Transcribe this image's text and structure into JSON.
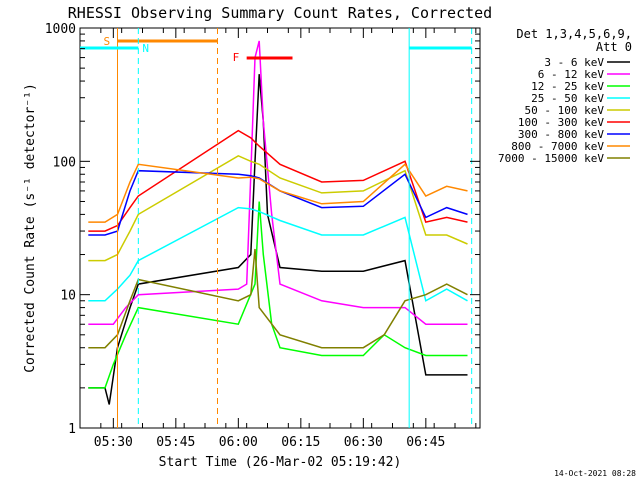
{
  "chart_data": {
    "type": "line",
    "title": "RHESSI Observing Summary Count Rates, Corrected",
    "ylabel": "Corrected Count Rate (s⁻¹ detector⁻¹)",
    "xlabel": "Start Time (26-Mar-02 05:19:42)",
    "yscale": "log",
    "ylim": [
      1,
      1000
    ],
    "xlim": [
      "05:22",
      "06:58"
    ],
    "x_ticks": [
      "05:30",
      "05:45",
      "06:00",
      "06:15",
      "06:30",
      "06:45"
    ],
    "y_ticks": [
      "1",
      "10",
      "100",
      "1000"
    ],
    "detector_info": "Det 1,3,4,5,6,9,",
    "attenuator_info": "Att 0",
    "timestamp": "14-Oct-2021 08:28",
    "flag_labels": [
      "S",
      "N",
      "F"
    ],
    "colors": {
      "3-6": "#000000",
      "6-12": "#ff00ff",
      "12-25": "#00ff00",
      "25-50": "#00ffff",
      "50-100": "#cccc00",
      "100-300": "#ff0000",
      "300-800": "#0000ff",
      "800-7000": "#ff8800",
      "7000-15000": "#808000"
    },
    "series": [
      {
        "name": "3 - 6 keV",
        "color": "#000000",
        "t": [
          "05:24",
          "05:28",
          "05:29",
          "05:31",
          "05:34",
          "05:36",
          "06:00",
          "06:03",
          "06:04",
          "06:05",
          "06:06",
          "06:07",
          "06:10",
          "06:20",
          "06:30",
          "06:40",
          "06:45",
          "06:55"
        ],
        "v": [
          2.0,
          2.0,
          1.5,
          4,
          8,
          12,
          16,
          20,
          100,
          450,
          200,
          40,
          16,
          15,
          15,
          18,
          2.5,
          2.5
        ]
      },
      {
        "name": "6 - 12 keV",
        "color": "#ff00ff",
        "t": [
          "05:24",
          "05:30",
          "05:33",
          "05:36",
          "06:00",
          "06:02",
          "06:03",
          "06:04",
          "06:05",
          "06:06",
          "06:08",
          "06:10",
          "06:20",
          "06:30",
          "06:40",
          "06:45",
          "06:55"
        ],
        "v": [
          6,
          6,
          8,
          10,
          11,
          12,
          80,
          600,
          800,
          200,
          40,
          12,
          9,
          8,
          8,
          6,
          6
        ]
      },
      {
        "name": "12 - 25 keV",
        "color": "#00ff00",
        "t": [
          "05:24",
          "05:28",
          "05:30",
          "05:33",
          "05:36",
          "06:00",
          "06:04",
          "06:05",
          "06:06",
          "06:08",
          "06:10",
          "06:20",
          "06:30",
          "06:35",
          "06:40",
          "06:45",
          "06:55"
        ],
        "v": [
          2.0,
          2.0,
          3,
          5,
          8,
          6,
          12,
          50,
          20,
          6,
          4,
          3.5,
          3.5,
          5,
          4,
          3.5,
          3.5
        ]
      },
      {
        "name": "25 - 50 keV",
        "color": "#00ffff",
        "t": [
          "05:24",
          "05:28",
          "05:31",
          "05:34",
          "05:36",
          "06:00",
          "06:03",
          "06:05",
          "06:10",
          "06:20",
          "06:30",
          "06:40",
          "06:45",
          "06:50",
          "06:55"
        ],
        "v": [
          9,
          9,
          11,
          14,
          18,
          45,
          44,
          42,
          36,
          28,
          28,
          38,
          9,
          11,
          9
        ]
      },
      {
        "name": "50 - 100 keV",
        "color": "#cccc00",
        "t": [
          "05:24",
          "05:28",
          "05:31",
          "05:34",
          "05:36",
          "06:00",
          "06:03",
          "06:05",
          "06:10",
          "06:20",
          "06:30",
          "06:40",
          "06:45",
          "06:50",
          "06:55"
        ],
        "v": [
          18,
          18,
          20,
          30,
          40,
          110,
          100,
          95,
          75,
          58,
          60,
          85,
          28,
          28,
          24
        ]
      },
      {
        "name": "100 - 300 keV",
        "color": "#ff0000",
        "t": [
          "05:24",
          "05:28",
          "05:31",
          "05:34",
          "05:36",
          "06:00",
          "06:03",
          "06:05",
          "06:10",
          "06:20",
          "06:30",
          "06:40",
          "06:45",
          "06:50",
          "06:55"
        ],
        "v": [
          30,
          30,
          33,
          45,
          55,
          170,
          150,
          130,
          95,
          70,
          72,
          100,
          35,
          38,
          35
        ]
      },
      {
        "name": "300 - 800 keV",
        "color": "#0000ff",
        "t": [
          "05:24",
          "05:28",
          "05:31",
          "05:34",
          "05:36",
          "06:00",
          "06:03",
          "06:05",
          "06:10",
          "06:20",
          "06:30",
          "06:40",
          "06:45",
          "06:50",
          "06:55"
        ],
        "v": [
          28,
          28,
          30,
          60,
          85,
          80,
          78,
          75,
          60,
          45,
          46,
          80,
          38,
          45,
          40
        ]
      },
      {
        "name": "800 - 7000 keV",
        "color": "#ff8800",
        "t": [
          "05:24",
          "05:28",
          "05:31",
          "05:34",
          "05:36",
          "06:00",
          "06:03",
          "06:05",
          "06:10",
          "06:20",
          "06:30",
          "06:40",
          "06:45",
          "06:50",
          "06:55"
        ],
        "v": [
          35,
          35,
          40,
          70,
          95,
          75,
          76,
          74,
          60,
          48,
          50,
          95,
          55,
          65,
          60
        ]
      },
      {
        "name": "7000 - 15000 keV",
        "color": "#808000",
        "t": [
          "05:24",
          "05:28",
          "05:31",
          "05:34",
          "05:36",
          "06:00",
          "06:03",
          "06:04",
          "06:05",
          "06:10",
          "06:20",
          "06:30",
          "06:35",
          "06:40",
          "06:45",
          "06:50",
          "06:55"
        ],
        "v": [
          4,
          4,
          5,
          9,
          13,
          9,
          10,
          22,
          8,
          5,
          4,
          4,
          5,
          9,
          10,
          12,
          10
        ]
      }
    ],
    "overlays": {
      "S": {
        "color": "#ff8800",
        "start": "05:31",
        "end": "05:55"
      },
      "N": {
        "color": "#00ffff",
        "start_bar": "05:22",
        "end_bar": "05:36",
        "start2": "06:41",
        "end2": "06:56"
      },
      "F": {
        "color": "#ff0000",
        "start": "06:02",
        "end": "06:13"
      }
    }
  }
}
